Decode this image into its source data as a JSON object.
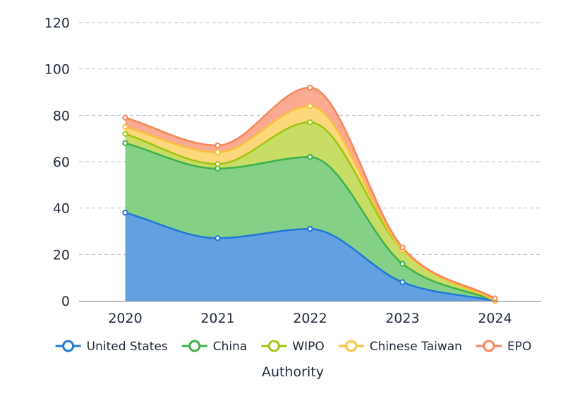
{
  "chart_data": {
    "type": "area",
    "stacked": true,
    "smooth": true,
    "categories": [
      "2020",
      "2021",
      "2022",
      "2023",
      "2024"
    ],
    "series": [
      {
        "name": "United States",
        "values": [
          38,
          27,
          31,
          8,
          0
        ],
        "color": "#1f77d8",
        "fill": "#5b9be0"
      },
      {
        "name": "China",
        "values": [
          30,
          30,
          31,
          8,
          0
        ],
        "color": "#3eb04a",
        "fill": "#7ccd80"
      },
      {
        "name": "WIPO",
        "values": [
          4,
          2,
          15,
          6,
          0
        ],
        "color": "#9ec40f",
        "fill": "#c4db5e"
      },
      {
        "name": "Chinese Taiwan",
        "values": [
          3,
          5,
          7,
          0,
          0
        ],
        "color": "#f8c13a",
        "fill": "#fdd575"
      },
      {
        "name": "EPO",
        "values": [
          4,
          3,
          8,
          1,
          1
        ],
        "color": "#f7865a",
        "fill": "#f9a58a"
      }
    ],
    "ylim": [
      0,
      120
    ],
    "yticks": [
      0,
      20,
      40,
      60,
      80,
      100,
      120
    ],
    "xlabel": "Authority",
    "ylabel": "",
    "grid": true,
    "legend": "bottom"
  }
}
